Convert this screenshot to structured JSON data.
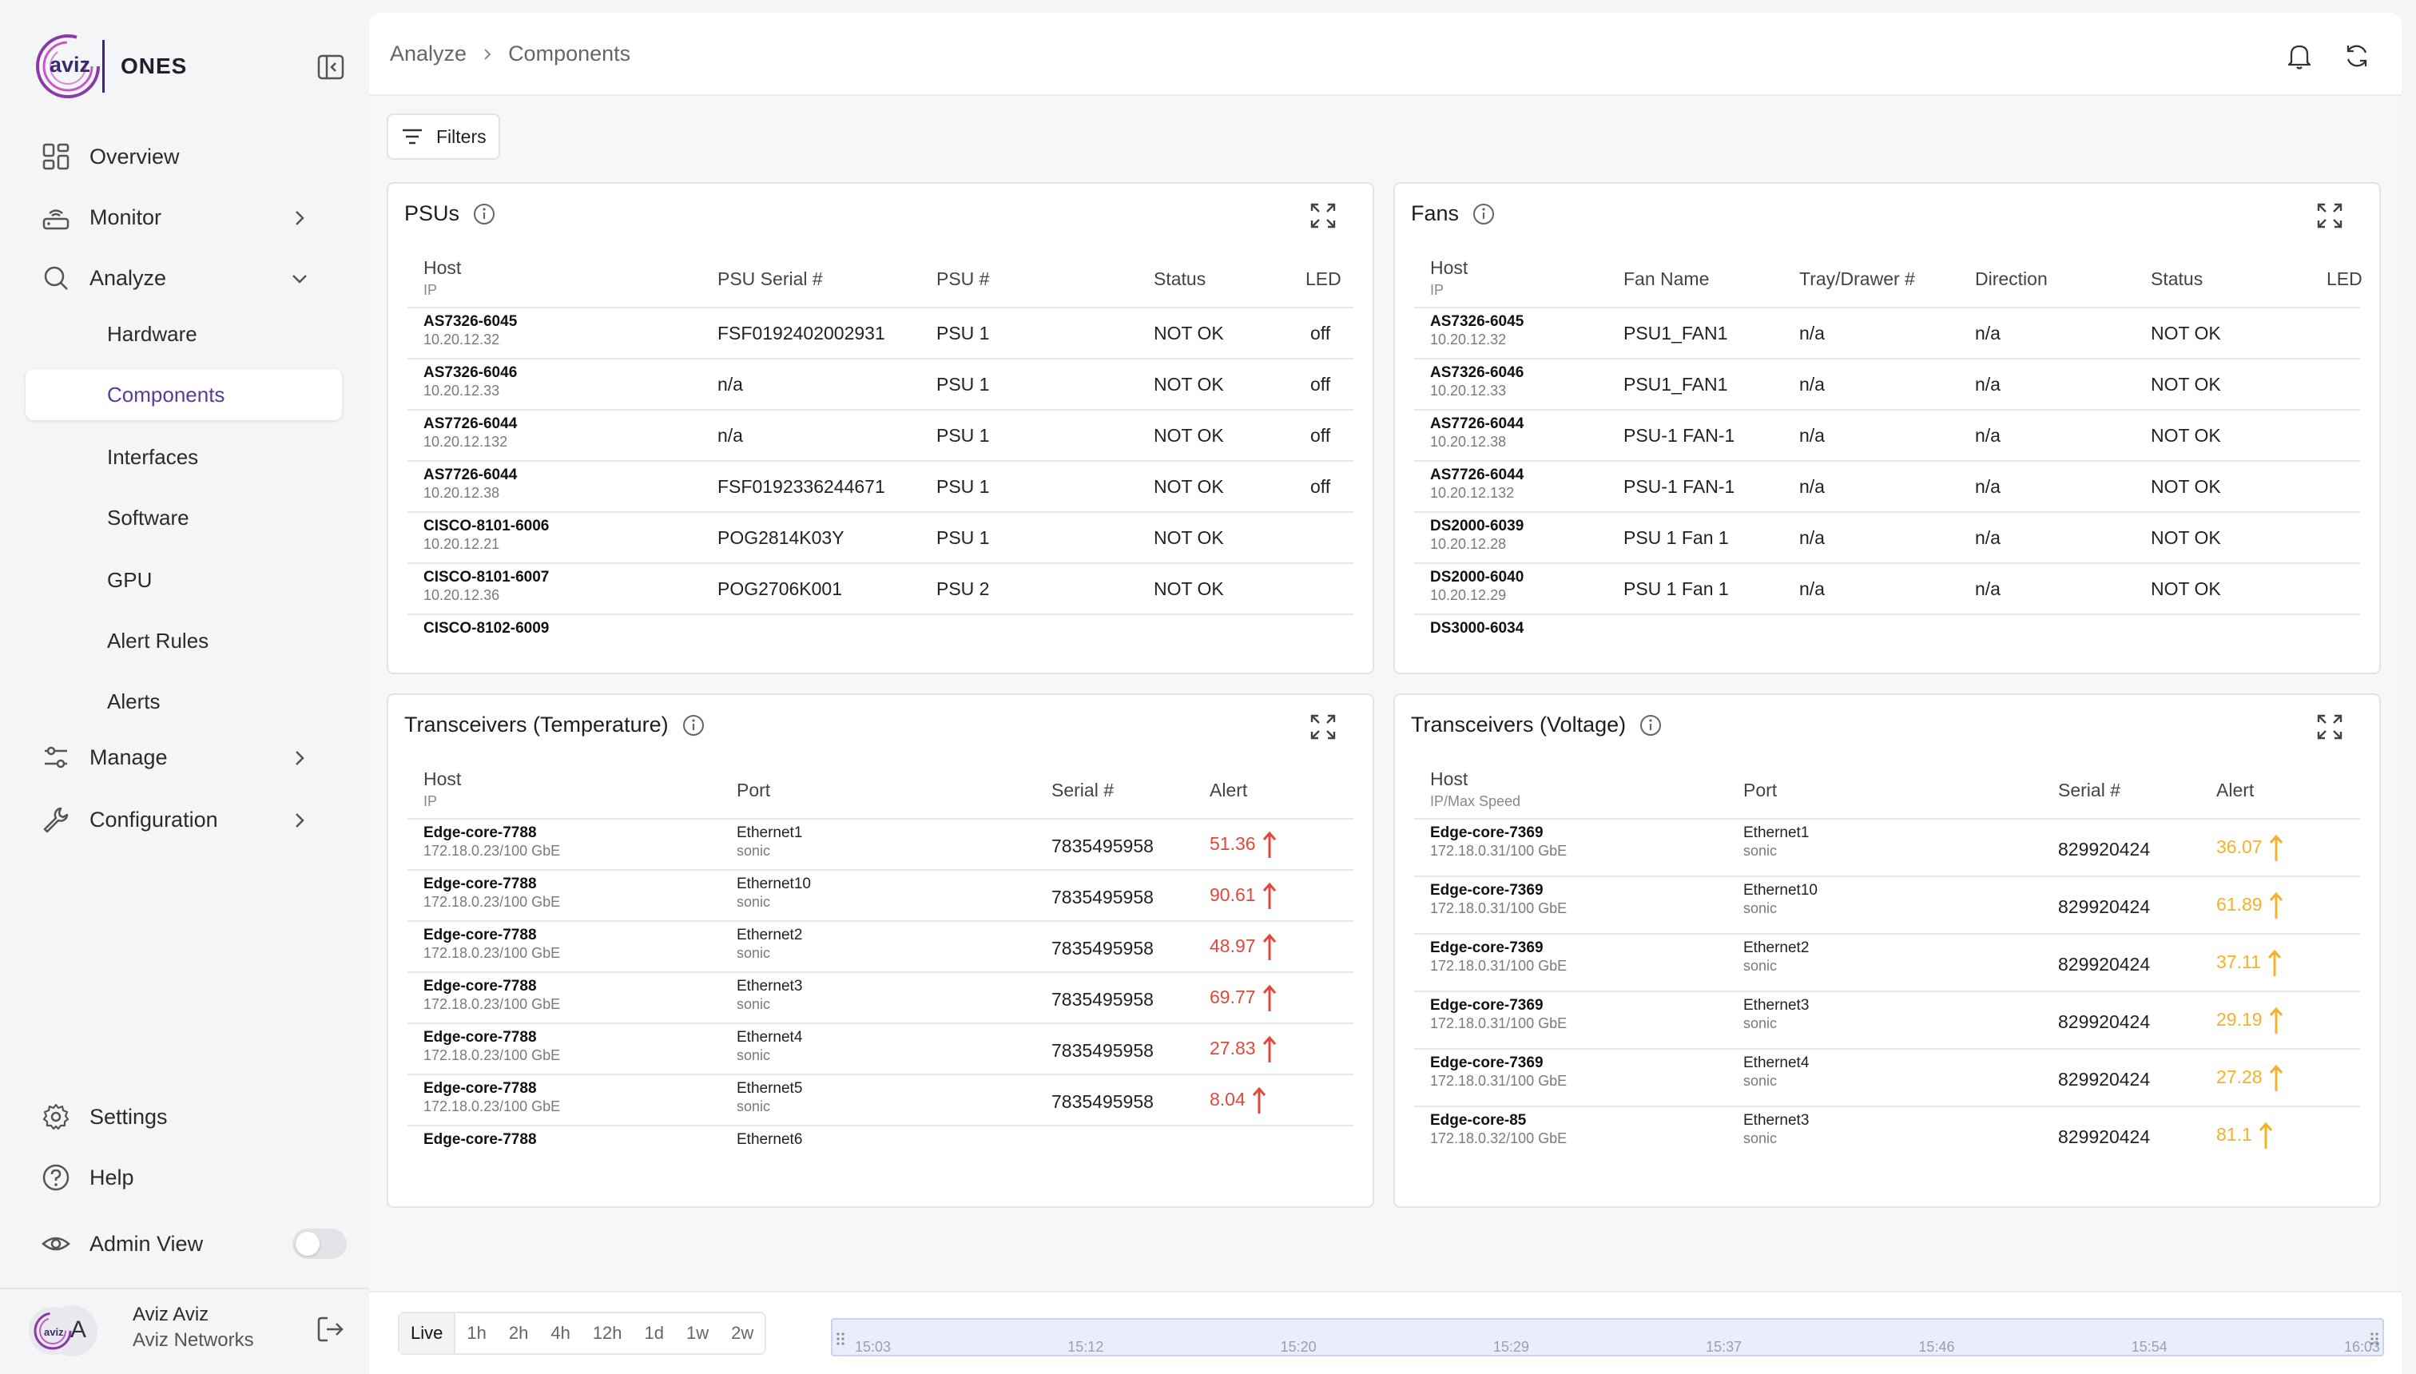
{
  "brand": {
    "name": "ONES",
    "logo_text": "aviz"
  },
  "nav": {
    "overview": "Overview",
    "monitor": "Monitor",
    "analyze": "Analyze",
    "analyze_sub": [
      "Hardware",
      "Components",
      "Interfaces",
      "Software",
      "GPU",
      "Alert Rules",
      "Alerts"
    ],
    "manage": "Manage",
    "configuration": "Configuration",
    "settings": "Settings",
    "help": "Help",
    "admin_view": "Admin View"
  },
  "user": {
    "name": "Aviz Aviz",
    "org": "Aviz Networks",
    "initial": "A"
  },
  "breadcrumb": {
    "parent": "Analyze",
    "current": "Components"
  },
  "filters_label": "Filters",
  "colors": {
    "accent": "#5a3a9a",
    "alert_red": "#e2483d",
    "alert_amber": "#f2b229",
    "timeline": "#eaeefa"
  },
  "psus": {
    "title": "PSUs",
    "headers": {
      "host": "Host",
      "host_sub": "IP",
      "serial": "PSU Serial #",
      "num": "PSU #",
      "status": "Status",
      "led": "LED"
    },
    "rows": [
      {
        "host": "AS7326-6045",
        "ip": "10.20.12.32",
        "serial": "FSF0192402002931",
        "num": "PSU 1",
        "status": "NOT OK",
        "led": "off"
      },
      {
        "host": "AS7326-6046",
        "ip": "10.20.12.33",
        "serial": "n/a",
        "num": "PSU 1",
        "status": "NOT OK",
        "led": "off"
      },
      {
        "host": "AS7726-6044",
        "ip": "10.20.12.132",
        "serial": "n/a",
        "num": "PSU 1",
        "status": "NOT OK",
        "led": "off"
      },
      {
        "host": "AS7726-6044",
        "ip": "10.20.12.38",
        "serial": "FSF0192336244671",
        "num": "PSU 1",
        "status": "NOT OK",
        "led": "off"
      },
      {
        "host": "CISCO-8101-6006",
        "ip": "10.20.12.21",
        "serial": "POG2814K03Y",
        "num": "PSU 1",
        "status": "NOT OK",
        "led": ""
      },
      {
        "host": "CISCO-8101-6007",
        "ip": "10.20.12.36",
        "serial": "POG2706K001",
        "num": "PSU 2",
        "status": "NOT OK",
        "led": ""
      },
      {
        "host": "CISCO-8102-6009",
        "ip": "",
        "serial": "",
        "num": "",
        "status": "",
        "led": ""
      }
    ]
  },
  "fans": {
    "title": "Fans",
    "headers": {
      "host": "Host",
      "host_sub": "IP",
      "name": "Fan Name",
      "tray": "Tray/Drawer #",
      "direction": "Direction",
      "status": "Status",
      "led": "LED"
    },
    "rows": [
      {
        "host": "AS7326-6045",
        "ip": "10.20.12.32",
        "name": "PSU1_FAN1",
        "tray": "n/a",
        "direction": "n/a",
        "status": "NOT OK"
      },
      {
        "host": "AS7326-6046",
        "ip": "10.20.12.33",
        "name": "PSU1_FAN1",
        "tray": "n/a",
        "direction": "n/a",
        "status": "NOT OK"
      },
      {
        "host": "AS7726-6044",
        "ip": "10.20.12.38",
        "name": "PSU-1 FAN-1",
        "tray": "n/a",
        "direction": "n/a",
        "status": "NOT OK"
      },
      {
        "host": "AS7726-6044",
        "ip": "10.20.12.132",
        "name": "PSU-1 FAN-1",
        "tray": "n/a",
        "direction": "n/a",
        "status": "NOT OK"
      },
      {
        "host": "DS2000-6039",
        "ip": "10.20.12.28",
        "name": "PSU 1 Fan 1",
        "tray": "n/a",
        "direction": "n/a",
        "status": "NOT OK"
      },
      {
        "host": "DS2000-6040",
        "ip": "10.20.12.29",
        "name": "PSU 1 Fan 1",
        "tray": "n/a",
        "direction": "n/a",
        "status": "NOT OK"
      },
      {
        "host": "DS3000-6034",
        "ip": "",
        "name": "",
        "tray": "",
        "direction": "",
        "status": ""
      }
    ]
  },
  "temp": {
    "title": "Transceivers (Temperature)",
    "headers": {
      "host": "Host",
      "host_sub": "IP",
      "port": "Port",
      "serial": "Serial #",
      "alert": "Alert"
    },
    "rows": [
      {
        "host": "Edge-core-7788",
        "ip": "172.18.0.23/100 GbE",
        "port": "Ethernet1",
        "port_sub": "sonic",
        "serial": "7835495958",
        "alert": "51.36"
      },
      {
        "host": "Edge-core-7788",
        "ip": "172.18.0.23/100 GbE",
        "port": "Ethernet10",
        "port_sub": "sonic",
        "serial": "7835495958",
        "alert": "90.61"
      },
      {
        "host": "Edge-core-7788",
        "ip": "172.18.0.23/100 GbE",
        "port": "Ethernet2",
        "port_sub": "sonic",
        "serial": "7835495958",
        "alert": "48.97"
      },
      {
        "host": "Edge-core-7788",
        "ip": "172.18.0.23/100 GbE",
        "port": "Ethernet3",
        "port_sub": "sonic",
        "serial": "7835495958",
        "alert": "69.77"
      },
      {
        "host": "Edge-core-7788",
        "ip": "172.18.0.23/100 GbE",
        "port": "Ethernet4",
        "port_sub": "sonic",
        "serial": "7835495958",
        "alert": "27.83"
      },
      {
        "host": "Edge-core-7788",
        "ip": "172.18.0.23/100 GbE",
        "port": "Ethernet5",
        "port_sub": "sonic",
        "serial": "7835495958",
        "alert": "8.04"
      },
      {
        "host": "Edge-core-7788",
        "ip": "",
        "port": "Ethernet6",
        "port_sub": "",
        "serial": "",
        "alert": ""
      }
    ]
  },
  "volt": {
    "title": "Transceivers (Voltage)",
    "headers": {
      "host": "Host",
      "host_sub": "IP/Max Speed",
      "port": "Port",
      "serial": "Serial #",
      "alert": "Alert"
    },
    "rows": [
      {
        "host": "Edge-core-7369",
        "ip": "172.18.0.31/100 GbE",
        "port": "Ethernet1",
        "port_sub": "sonic",
        "serial": "829920424",
        "alert": "36.07"
      },
      {
        "host": "Edge-core-7369",
        "ip": "172.18.0.31/100 GbE",
        "port": "Ethernet10",
        "port_sub": "sonic",
        "serial": "829920424",
        "alert": "61.89"
      },
      {
        "host": "Edge-core-7369",
        "ip": "172.18.0.31/100 GbE",
        "port": "Ethernet2",
        "port_sub": "sonic",
        "serial": "829920424",
        "alert": "37.11"
      },
      {
        "host": "Edge-core-7369",
        "ip": "172.18.0.31/100 GbE",
        "port": "Ethernet3",
        "port_sub": "sonic",
        "serial": "829920424",
        "alert": "29.19"
      },
      {
        "host": "Edge-core-7369",
        "ip": "172.18.0.31/100 GbE",
        "port": "Ethernet4",
        "port_sub": "sonic",
        "serial": "829920424",
        "alert": "27.28"
      },
      {
        "host": "Edge-core-85",
        "ip": "172.18.0.32/100 GbE",
        "port": "Ethernet3",
        "port_sub": "sonic",
        "serial": "829920424",
        "alert": "81.1"
      }
    ]
  },
  "time_ranges": [
    "Live",
    "1h",
    "2h",
    "4h",
    "12h",
    "1d",
    "1w",
    "2w"
  ],
  "timeline_ticks": [
    "15:03",
    "15:12",
    "15:20",
    "15:29",
    "15:37",
    "15:46",
    "15:54",
    "16:03"
  ]
}
